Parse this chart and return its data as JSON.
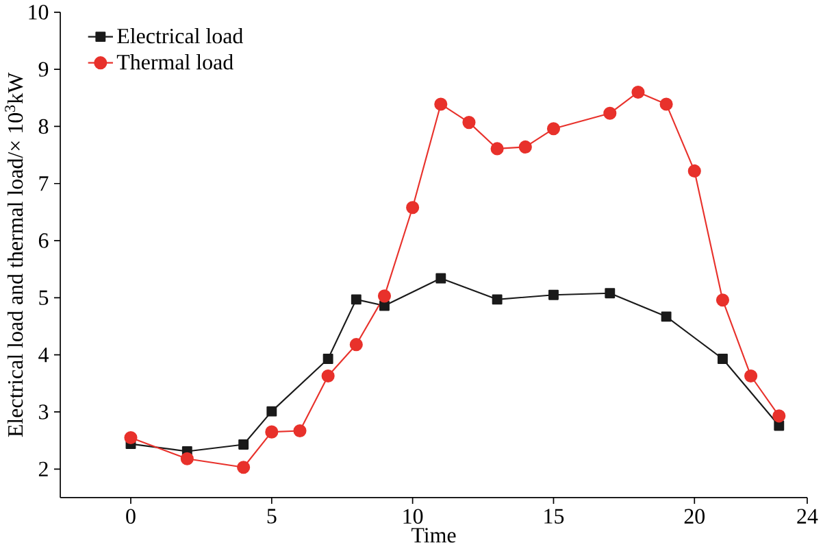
{
  "chart_data": {
    "type": "line",
    "xlabel": "Time",
    "ylabel": "Electrical load and thermal load/× 10$^{3}$kW",
    "xlim": [
      -2.5,
      24
    ],
    "xticks": [
      0,
      5,
      10,
      15,
      20,
      24
    ],
    "ylim": [
      1.5,
      10
    ],
    "yticks": [
      2,
      3,
      4,
      5,
      6,
      7,
      8,
      9,
      10
    ],
    "legend": "top left",
    "grid": false,
    "series": [
      {
        "name": "Electrical load",
        "color": "#1a1a1a",
        "marker": "square",
        "x": [
          0,
          2,
          4,
          5,
          7,
          8,
          9,
          11,
          13,
          15,
          17,
          19,
          21,
          23
        ],
        "values": [
          2.44,
          2.31,
          2.43,
          3.01,
          3.93,
          4.97,
          4.86,
          5.34,
          4.97,
          5.05,
          5.08,
          4.67,
          3.93,
          2.76
        ]
      },
      {
        "name": "Thermal load",
        "color": "#e8312b",
        "marker": "circle",
        "x": [
          0,
          2,
          4,
          5,
          6,
          7,
          8,
          9,
          10,
          11,
          12,
          13,
          14,
          15,
          17,
          18,
          19,
          20,
          21,
          22,
          23
        ],
        "values": [
          2.55,
          2.18,
          2.03,
          2.65,
          2.67,
          3.63,
          4.18,
          5.03,
          6.58,
          8.39,
          8.07,
          7.61,
          7.64,
          7.96,
          8.23,
          8.6,
          8.39,
          7.22,
          4.96,
          3.63,
          2.93
        ]
      }
    ]
  }
}
